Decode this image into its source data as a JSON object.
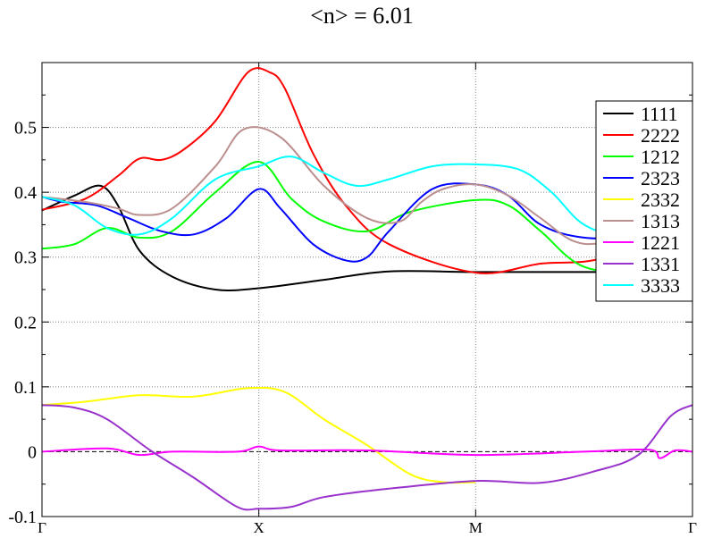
{
  "chart_data": {
    "type": "line",
    "title": "<n> = 6.01",
    "xlabel": "",
    "ylabel": "",
    "x_ticks": [
      {
        "label": "Γ",
        "x": 0
      },
      {
        "label": "X",
        "x": 1
      },
      {
        "label": "M",
        "x": 2
      },
      {
        "label": "Γ",
        "x": 3
      }
    ],
    "xlim": [
      0,
      3
    ],
    "ylim": [
      -0.1,
      0.6
    ],
    "y_ticks": [
      {
        "value": -0.1,
        "label": "-0.1"
      },
      {
        "value": 0,
        "label": "0"
      },
      {
        "value": 0.1,
        "label": "0.1"
      },
      {
        "value": 0.2,
        "label": "0.2"
      },
      {
        "value": 0.3,
        "label": "0.3"
      },
      {
        "value": 0.4,
        "label": "0.4"
      },
      {
        "value": 0.5,
        "label": "0.5"
      }
    ],
    "grid": true,
    "zero_line": true,
    "legend_position": "top-right",
    "series": [
      {
        "name": "1111",
        "color": "#000000",
        "points": [
          [
            0,
            0.372
          ],
          [
            0.15,
            0.395
          ],
          [
            0.27,
            0.41
          ],
          [
            0.35,
            0.38
          ],
          [
            0.45,
            0.31
          ],
          [
            0.6,
            0.27
          ],
          [
            0.8,
            0.25
          ],
          [
            1,
            0.252
          ],
          [
            1.3,
            0.265
          ],
          [
            1.6,
            0.278
          ],
          [
            2,
            0.277
          ],
          [
            2.5,
            0.277
          ],
          [
            3,
            0.277
          ]
        ]
      },
      {
        "name": "2222",
        "color": "#ff0000",
        "points": [
          [
            0,
            0.373
          ],
          [
            0.2,
            0.39
          ],
          [
            0.35,
            0.425
          ],
          [
            0.45,
            0.452
          ],
          [
            0.55,
            0.45
          ],
          [
            0.65,
            0.465
          ],
          [
            0.8,
            0.51
          ],
          [
            0.95,
            0.585
          ],
          [
            1.05,
            0.585
          ],
          [
            1.12,
            0.56
          ],
          [
            1.25,
            0.46
          ],
          [
            1.4,
            0.38
          ],
          [
            1.6,
            0.32
          ],
          [
            2,
            0.276
          ],
          [
            2.3,
            0.29
          ],
          [
            2.6,
            0.3
          ],
          [
            3,
            0.365
          ]
        ]
      },
      {
        "name": "1212",
        "color": "#00ff00",
        "points": [
          [
            0,
            0.313
          ],
          [
            0.15,
            0.32
          ],
          [
            0.3,
            0.345
          ],
          [
            0.45,
            0.33
          ],
          [
            0.6,
            0.34
          ],
          [
            0.8,
            0.4
          ],
          [
            1,
            0.447
          ],
          [
            1.15,
            0.39
          ],
          [
            1.3,
            0.355
          ],
          [
            1.5,
            0.34
          ],
          [
            1.7,
            0.37
          ],
          [
            2,
            0.388
          ],
          [
            2.15,
            0.38
          ],
          [
            2.3,
            0.34
          ],
          [
            2.5,
            0.285
          ],
          [
            2.8,
            0.275
          ],
          [
            3,
            0.275
          ]
        ]
      },
      {
        "name": "2323",
        "color": "#0000ff",
        "points": [
          [
            0,
            0.393
          ],
          [
            0.1,
            0.385
          ],
          [
            0.25,
            0.38
          ],
          [
            0.4,
            0.36
          ],
          [
            0.55,
            0.34
          ],
          [
            0.7,
            0.335
          ],
          [
            0.85,
            0.36
          ],
          [
            1,
            0.405
          ],
          [
            1.1,
            0.375
          ],
          [
            1.25,
            0.32
          ],
          [
            1.4,
            0.295
          ],
          [
            1.5,
            0.3
          ],
          [
            1.6,
            0.34
          ],
          [
            1.8,
            0.405
          ],
          [
            2,
            0.412
          ],
          [
            2.15,
            0.395
          ],
          [
            2.3,
            0.35
          ],
          [
            2.5,
            0.33
          ],
          [
            2.8,
            0.33
          ],
          [
            3,
            0.33
          ]
        ]
      },
      {
        "name": "2332",
        "color": "#ffff00",
        "points": [
          [
            0,
            0.072
          ],
          [
            0.2,
            0.077
          ],
          [
            0.45,
            0.087
          ],
          [
            0.7,
            0.085
          ],
          [
            0.95,
            0.098
          ],
          [
            1.12,
            0.092
          ],
          [
            1.3,
            0.05
          ],
          [
            1.5,
            0.01
          ],
          [
            1.7,
            -0.035
          ],
          [
            1.85,
            -0.047
          ],
          [
            2,
            -0.047
          ]
        ]
      },
      {
        "name": "1313",
        "color": "#bc8f8f",
        "points": [
          [
            0,
            0.393
          ],
          [
            0.2,
            0.385
          ],
          [
            0.35,
            0.375
          ],
          [
            0.45,
            0.365
          ],
          [
            0.6,
            0.375
          ],
          [
            0.8,
            0.44
          ],
          [
            0.93,
            0.497
          ],
          [
            1.1,
            0.485
          ],
          [
            1.3,
            0.41
          ],
          [
            1.5,
            0.36
          ],
          [
            1.65,
            0.355
          ],
          [
            1.75,
            0.385
          ],
          [
            1.85,
            0.405
          ],
          [
            2,
            0.412
          ],
          [
            2.15,
            0.395
          ],
          [
            2.3,
            0.36
          ],
          [
            2.45,
            0.325
          ],
          [
            2.6,
            0.322
          ],
          [
            3,
            0.34
          ]
        ]
      },
      {
        "name": "1221",
        "color": "#ff00ff",
        "points": [
          [
            0,
            0
          ],
          [
            0.3,
            0.005
          ],
          [
            0.45,
            -0.005
          ],
          [
            0.6,
            0
          ],
          [
            0.9,
            0
          ],
          [
            1,
            0.008
          ],
          [
            1.1,
            0.002
          ],
          [
            1.5,
            0.002
          ],
          [
            2,
            -0.005
          ],
          [
            2.5,
            0
          ],
          [
            2.8,
            0.003
          ],
          [
            2.85,
            -0.01
          ],
          [
            2.92,
            0.002
          ],
          [
            3,
            0
          ]
        ]
      },
      {
        "name": "1331",
        "color": "#9932cc",
        "points": [
          [
            0,
            0.072
          ],
          [
            0.15,
            0.068
          ],
          [
            0.3,
            0.05
          ],
          [
            0.5,
            0.002
          ],
          [
            0.7,
            -0.04
          ],
          [
            0.9,
            -0.085
          ],
          [
            1,
            -0.088
          ],
          [
            1.15,
            -0.085
          ],
          [
            1.3,
            -0.07
          ],
          [
            1.6,
            -0.057
          ],
          [
            2,
            -0.045
          ],
          [
            2.3,
            -0.048
          ],
          [
            2.55,
            -0.03
          ],
          [
            2.75,
            -0.005
          ],
          [
            2.9,
            0.055
          ],
          [
            3,
            0.072
          ]
        ]
      },
      {
        "name": "3333",
        "color": "#00ffff",
        "points": [
          [
            0,
            0.393
          ],
          [
            0.15,
            0.38
          ],
          [
            0.3,
            0.345
          ],
          [
            0.45,
            0.335
          ],
          [
            0.6,
            0.36
          ],
          [
            0.8,
            0.42
          ],
          [
            1,
            0.44
          ],
          [
            1.15,
            0.455
          ],
          [
            1.3,
            0.43
          ],
          [
            1.45,
            0.41
          ],
          [
            1.6,
            0.42
          ],
          [
            1.8,
            0.44
          ],
          [
            2,
            0.443
          ],
          [
            2.2,
            0.435
          ],
          [
            2.35,
            0.4
          ],
          [
            2.5,
            0.35
          ],
          [
            2.7,
            0.33
          ],
          [
            3,
            0.33
          ]
        ]
      }
    ]
  }
}
